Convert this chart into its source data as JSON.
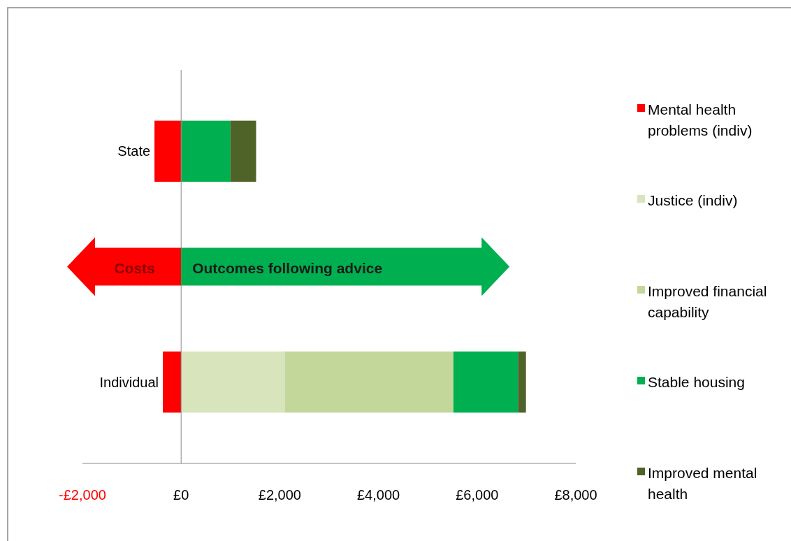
{
  "chart_data": {
    "type": "bar",
    "orientation": "horizontal",
    "stacked": true,
    "categories": [
      "State",
      "Individual"
    ],
    "series": [
      {
        "name": "Mental health problems (indiv)",
        "color": "#ff0000",
        "values": [
          -540,
          -370
        ]
      },
      {
        "name": "Justice (indiv)",
        "color": "#d8e4bc",
        "values": [
          0,
          2100
        ]
      },
      {
        "name": "Improved financial capability",
        "color": "#c4d79b",
        "values": [
          0,
          3420
        ]
      },
      {
        "name": "Stable housing",
        "color": "#00b050",
        "values": [
          1000,
          1310
        ]
      },
      {
        "name": "Improved mental health",
        "color": "#4f6228",
        "values": [
          520,
          160
        ]
      }
    ],
    "xlim": [
      -2000,
      8000
    ],
    "xticks": [
      {
        "value": -2000,
        "label": "-£2,000"
      },
      {
        "value": 0,
        "label": "£0"
      },
      {
        "value": 2000,
        "label": "£2,000"
      },
      {
        "value": 4000,
        "label": "£4,000"
      },
      {
        "value": 6000,
        "label": "£6,000"
      },
      {
        "value": 8000,
        "label": "£8,000"
      }
    ],
    "annotations": [
      "Costs",
      "Outcomes following advice"
    ],
    "legend": "right"
  }
}
